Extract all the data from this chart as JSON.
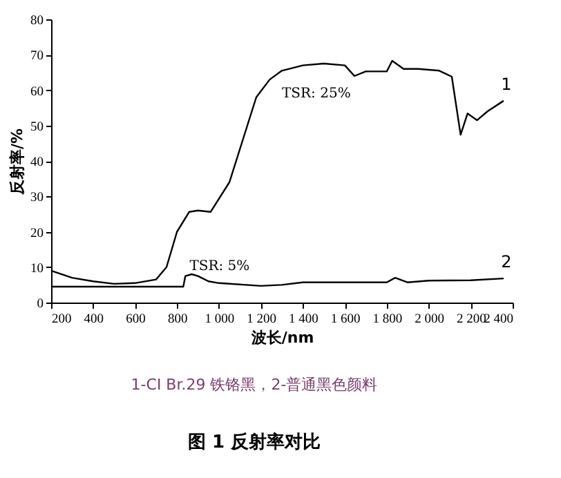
{
  "chart_data": {
    "type": "line",
    "title": "图 1 反射率对比",
    "xlabel": "波长/nm",
    "ylabel": "反射率/%",
    "xlim": [
      200,
      2400
    ],
    "ylim": [
      0,
      80
    ],
    "xticks": [
      200,
      400,
      600,
      800,
      {
        "value": 1000,
        "label": "1 000"
      },
      {
        "value": 1200,
        "label": "1 200"
      },
      {
        "value": 1400,
        "label": "1 400"
      },
      {
        "value": 1600,
        "label": "1 600"
      },
      {
        "value": 1800,
        "label": "1 800"
      },
      {
        "value": 2000,
        "label": "2 000"
      },
      {
        "value": 2200,
        "label": "2 200"
      },
      {
        "value": 2400,
        "label": "2 400"
      }
    ],
    "yticks": [
      0,
      10,
      20,
      30,
      40,
      50,
      60,
      70,
      80
    ],
    "marker": "none",
    "line_style": "solid",
    "series": [
      {
        "name": "1",
        "color": "#000000",
        "x": [
          200,
          300,
          400,
          500,
          600,
          700,
          750,
          800,
          858,
          900,
          960,
          1050,
          1114,
          1178,
          1242,
          1300,
          1400,
          1500,
          1600,
          1646,
          1700,
          1800,
          1826,
          1880,
          1950,
          2050,
          2110,
          2152,
          2185,
          2230,
          2280,
          2357
        ],
        "values": [
          9,
          7,
          6,
          5.3,
          5.5,
          6.5,
          10,
          20,
          25.6,
          26,
          25.6,
          34,
          46,
          58,
          63,
          65.5,
          67,
          67.5,
          67,
          64,
          65.3,
          65.3,
          68.3,
          66,
          66,
          65.5,
          63.8,
          47.4,
          53.4,
          51.5,
          54,
          57
        ]
      },
      {
        "name": "2",
        "color": "#000000",
        "x": [
          200,
          400,
          600,
          830,
          840,
          870,
          900,
          950,
          1000,
          1200,
          1300,
          1400,
          1600,
          1800,
          1840,
          1900,
          2000,
          2200,
          2357
        ],
        "values": [
          4.5,
          4.5,
          4.5,
          4.5,
          7.5,
          8,
          7.5,
          6,
          5.5,
          4.7,
          5,
          5.7,
          5.7,
          5.7,
          7,
          5.7,
          6.2,
          6.3,
          6.8
        ]
      }
    ],
    "annotations": [
      "TSR:  25%",
      "TSR:  5%",
      "1-CI Br.29 铁铬黑，2-普通黑色颜料"
    ]
  }
}
